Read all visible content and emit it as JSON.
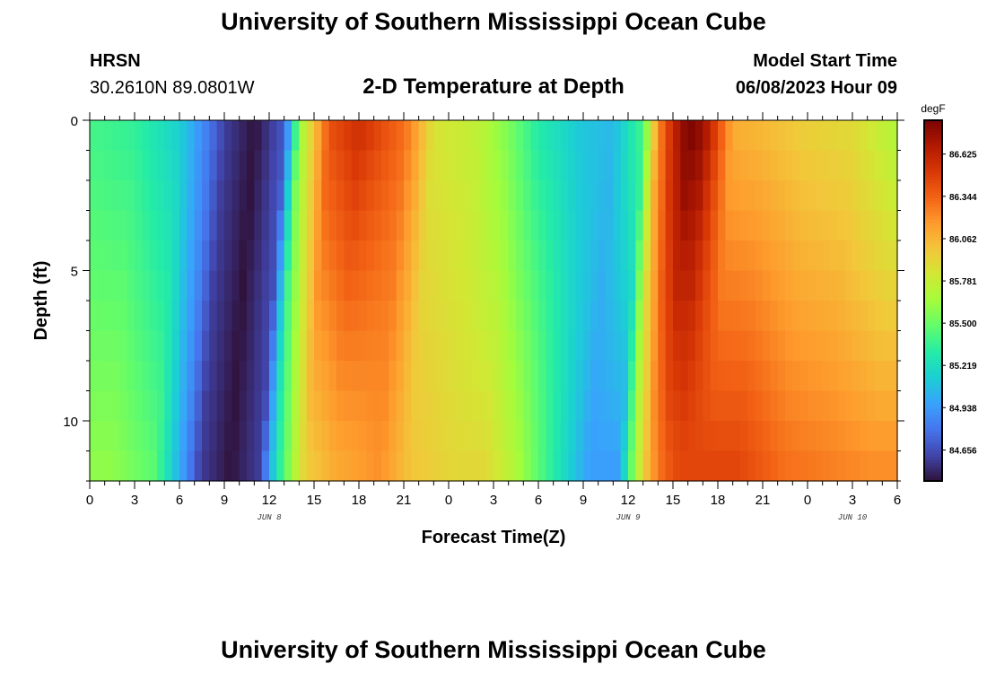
{
  "page": {
    "title": "University of Southern Mississippi Ocean Cube",
    "footer_title": "University of Southern Mississippi Ocean Cube",
    "station": "HRSN",
    "coords": "30.2610N  89.0801W",
    "plot_heading": "2-D Temperature at Depth",
    "model_label": "Model Start Time",
    "model_time": "06/08/2023 Hour 09"
  },
  "chart_data": {
    "type": "heatmap",
    "title": "2-D Temperature at Depth",
    "xlabel": "Forecast Time(Z)",
    "ylabel": "Depth (ft)",
    "x_hours_range": [
      0,
      54
    ],
    "x_ticks": [
      {
        "hour": 0,
        "label": "0"
      },
      {
        "hour": 3,
        "label": "3"
      },
      {
        "hour": 6,
        "label": "6"
      },
      {
        "hour": 9,
        "label": "9"
      },
      {
        "hour": 12,
        "label": "12"
      },
      {
        "hour": 15,
        "label": "15"
      },
      {
        "hour": 18,
        "label": "18"
      },
      {
        "hour": 21,
        "label": "21"
      },
      {
        "hour": 24,
        "label": "0"
      },
      {
        "hour": 27,
        "label": "3"
      },
      {
        "hour": 30,
        "label": "6"
      },
      {
        "hour": 33,
        "label": "9"
      },
      {
        "hour": 36,
        "label": "12"
      },
      {
        "hour": 39,
        "label": "15"
      },
      {
        "hour": 42,
        "label": "18"
      },
      {
        "hour": 45,
        "label": "21"
      },
      {
        "hour": 48,
        "label": "0"
      },
      {
        "hour": 51,
        "label": "3"
      },
      {
        "hour": 54,
        "label": "6"
      }
    ],
    "date_labels": [
      {
        "hour": 12,
        "label": "JUN 8"
      },
      {
        "hour": 36,
        "label": "JUN 9"
      },
      {
        "hour": 51,
        "label": "JUN 10"
      }
    ],
    "ylim": [
      0,
      12
    ],
    "y_ticks": [
      {
        "value": 0,
        "label": "0"
      },
      {
        "value": 5,
        "label": "5"
      },
      {
        "value": 10,
        "label": "10"
      }
    ],
    "depths_ft": [
      0.5,
      1.5,
      2.5,
      3.5,
      4.5,
      5.5,
      6.5,
      7.5,
      8.5,
      9.5,
      10.5,
      11.5
    ],
    "colorbar": {
      "unit": "degF",
      "range": [
        84.45,
        86.85
      ],
      "labels": [
        "86.625",
        "86.344",
        "86.062",
        "85.781",
        "85.500",
        "85.219",
        "84.938",
        "84.656"
      ],
      "colors": [
        "#30123b",
        "#4145ab",
        "#4675ed",
        "#39a2fc",
        "#1bcfd4",
        "#24eca6",
        "#61fc6c",
        "#a4fc3b",
        "#d1e834",
        "#f3c63a",
        "#fe9b2d",
        "#f36315",
        "#d93806",
        "#b11901",
        "#7a0403"
      ]
    },
    "time_profile": [
      {
        "hour": 0,
        "surface": 85.4,
        "bottom": 85.58
      },
      {
        "hour": 3,
        "surface": 85.35,
        "bottom": 85.6
      },
      {
        "hour": 6,
        "surface": 85.15,
        "bottom": 85.45
      },
      {
        "hour": 8,
        "surface": 84.8,
        "bottom": 84.9
      },
      {
        "hour": 9,
        "surface": 84.6,
        "bottom": 84.6
      },
      {
        "hour": 11,
        "surface": 84.45,
        "bottom": 84.45
      },
      {
        "hour": 13,
        "surface": 84.7,
        "bottom": 84.6
      },
      {
        "hour": 14,
        "surface": 85.6,
        "bottom": 85.2
      },
      {
        "hour": 15,
        "surface": 86.0,
        "bottom": 85.6
      },
      {
        "hour": 16,
        "surface": 86.4,
        "bottom": 85.95
      },
      {
        "hour": 18,
        "surface": 86.55,
        "bottom": 86.1
      },
      {
        "hour": 21,
        "surface": 86.3,
        "bottom": 86.2
      },
      {
        "hour": 22,
        "surface": 86.1,
        "bottom": 86.1
      },
      {
        "hour": 23,
        "surface": 85.85,
        "bottom": 86.0
      },
      {
        "hour": 26,
        "surface": 85.75,
        "bottom": 85.9
      },
      {
        "hour": 28,
        "surface": 85.55,
        "bottom": 85.9
      },
      {
        "hour": 30,
        "surface": 85.3,
        "bottom": 85.7
      },
      {
        "hour": 33,
        "surface": 85.1,
        "bottom": 85.25
      },
      {
        "hour": 35,
        "surface": 85.05,
        "bottom": 84.95
      },
      {
        "hour": 37,
        "surface": 85.4,
        "bottom": 84.95
      },
      {
        "hour": 38,
        "surface": 86.2,
        "bottom": 85.6
      },
      {
        "hour": 39,
        "surface": 86.6,
        "bottom": 86.1
      },
      {
        "hour": 40,
        "surface": 86.85,
        "bottom": 86.35
      },
      {
        "hour": 41,
        "surface": 86.75,
        "bottom": 86.45
      },
      {
        "hour": 43,
        "surface": 86.1,
        "bottom": 86.45
      },
      {
        "hour": 45,
        "surface": 86.05,
        "bottom": 86.45
      },
      {
        "hour": 48,
        "surface": 85.95,
        "bottom": 86.3
      },
      {
        "hour": 51,
        "surface": 85.9,
        "bottom": 86.25
      },
      {
        "hour": 54,
        "surface": 85.7,
        "bottom": 86.2
      }
    ]
  }
}
